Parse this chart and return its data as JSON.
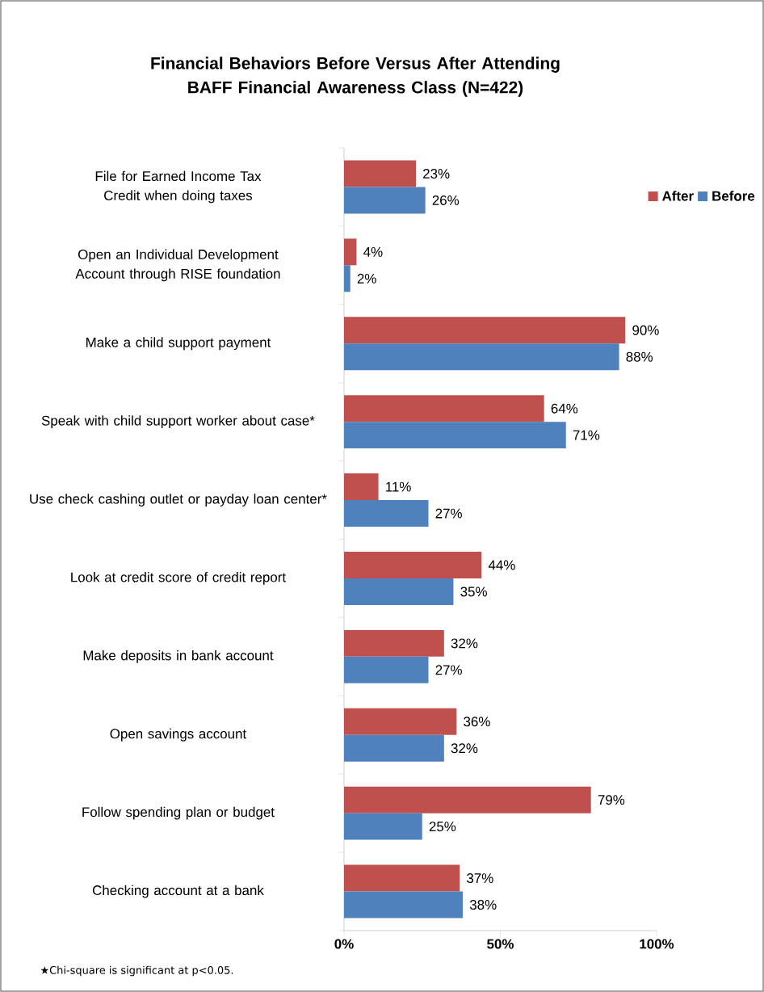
{
  "chart_data": {
    "type": "bar",
    "orientation": "horizontal",
    "title": "Financial Behaviors Before Versus After Attending BAFF Financial Awareness Class (N=422)",
    "categories": [
      "File for Earned Income Tax Credit when doing taxes",
      "Open an Individual Development Account through RISE foundation",
      "Make a child support payment",
      "Speak with child support worker about case*",
      "Use check cashing outlet or payday loan center*",
      "Look at credit score of credit report",
      "Make deposits in bank account",
      "Open savings account",
      "Follow spending plan or budget",
      "Checking account at a bank"
    ],
    "series": [
      {
        "name": "After",
        "color": "#c0504d",
        "values": [
          23,
          4,
          90,
          64,
          11,
          44,
          32,
          36,
          79,
          37
        ],
        "value_labels": [
          "23%",
          "4%",
          "90%",
          "64%",
          "11%",
          "44%",
          "32%",
          "36%",
          "79%",
          "37%"
        ]
      },
      {
        "name": "Before",
        "color": "#4f81bd",
        "values": [
          26,
          2,
          88,
          71,
          27,
          35,
          27,
          32,
          25,
          38
        ],
        "value_labels": [
          "26%",
          "2%",
          "88%",
          "71%",
          "27%",
          "35%",
          "27%",
          "32%",
          "25%",
          "38%"
        ]
      }
    ],
    "xlim": [
      0,
      100
    ],
    "xticks": [
      {
        "value": 0,
        "label": "0%"
      },
      {
        "value": 50,
        "label": "50%"
      },
      {
        "value": 100,
        "label": "100%"
      }
    ],
    "legend": "top right",
    "annotations": [
      "★Chi-square is significant  at p<0.05."
    ]
  }
}
